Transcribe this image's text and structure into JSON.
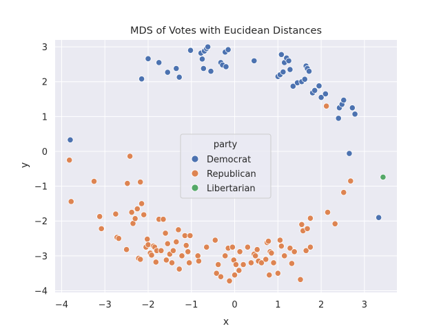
{
  "chart_data": {
    "type": "scatter",
    "title": "MDS of Votes with Eucidean Distances",
    "xlabel": "x",
    "ylabel": "y",
    "xlim": [
      -4.15,
      3.75
    ],
    "ylim": [
      -4.05,
      3.2
    ],
    "xticks": [
      -4,
      -3,
      -2,
      -1,
      0,
      1,
      2,
      3
    ],
    "yticks": [
      -4,
      -3,
      -2,
      -1,
      0,
      1,
      2,
      3
    ],
    "grid": true,
    "legend": {
      "title": "party",
      "placement": "center"
    },
    "series": [
      {
        "name": "Democrat",
        "color": "#4c72b0",
        "points": [
          [
            -3.8,
            0.33
          ],
          [
            -2.15,
            2.08
          ],
          [
            -2.0,
            2.66
          ],
          [
            -1.75,
            2.55
          ],
          [
            -1.55,
            2.27
          ],
          [
            -1.35,
            2.38
          ],
          [
            -1.28,
            2.13
          ],
          [
            -1.02,
            2.9
          ],
          [
            -0.78,
            2.82
          ],
          [
            -0.75,
            2.65
          ],
          [
            -0.72,
            2.38
          ],
          [
            -0.7,
            2.88
          ],
          [
            -0.65,
            2.95
          ],
          [
            -0.62,
            3.0
          ],
          [
            -0.55,
            2.3
          ],
          [
            -0.32,
            2.55
          ],
          [
            -0.28,
            2.48
          ],
          [
            -0.22,
            2.85
          ],
          [
            -0.2,
            2.43
          ],
          [
            -0.15,
            2.92
          ],
          [
            0.45,
            2.6
          ],
          [
            1.0,
            2.15
          ],
          [
            1.05,
            2.2
          ],
          [
            1.08,
            2.78
          ],
          [
            1.12,
            2.28
          ],
          [
            1.15,
            2.55
          ],
          [
            1.2,
            2.68
          ],
          [
            1.25,
            2.6
          ],
          [
            1.28,
            2.35
          ],
          [
            1.35,
            1.87
          ],
          [
            1.45,
            1.97
          ],
          [
            1.55,
            2.0
          ],
          [
            1.62,
            2.07
          ],
          [
            1.65,
            2.45
          ],
          [
            1.68,
            2.38
          ],
          [
            1.72,
            2.3
          ],
          [
            1.8,
            1.68
          ],
          [
            1.85,
            1.75
          ],
          [
            1.95,
            1.88
          ],
          [
            2.0,
            1.55
          ],
          [
            2.1,
            1.65
          ],
          [
            2.4,
            0.95
          ],
          [
            2.42,
            1.25
          ],
          [
            2.48,
            1.35
          ],
          [
            2.52,
            1.47
          ],
          [
            2.65,
            -0.06
          ],
          [
            2.72,
            1.25
          ],
          [
            2.78,
            1.07
          ],
          [
            3.33,
            -1.9
          ]
        ]
      },
      {
        "name": "Republican",
        "color": "#dd8452",
        "points": [
          [
            -3.82,
            -0.25
          ],
          [
            -3.78,
            -1.44
          ],
          [
            -3.25,
            -0.86
          ],
          [
            -3.12,
            -1.87
          ],
          [
            -3.08,
            -2.22
          ],
          [
            -2.75,
            -1.8
          ],
          [
            -2.72,
            -2.47
          ],
          [
            -2.68,
            -2.5
          ],
          [
            -2.5,
            -2.82
          ],
          [
            -2.48,
            -0.92
          ],
          [
            -2.42,
            -0.14
          ],
          [
            -2.38,
            -1.75
          ],
          [
            -2.35,
            -2.07
          ],
          [
            -2.3,
            -1.93
          ],
          [
            -2.25,
            -1.65
          ],
          [
            -2.22,
            -3.07
          ],
          [
            -2.18,
            -3.1
          ],
          [
            -2.18,
            -0.88
          ],
          [
            -2.15,
            -1.5
          ],
          [
            -2.1,
            -1.82
          ],
          [
            -2.05,
            -2.75
          ],
          [
            -2.02,
            -2.52
          ],
          [
            -2.0,
            -2.68
          ],
          [
            -1.95,
            -2.92
          ],
          [
            -1.92,
            -2.98
          ],
          [
            -1.88,
            -2.72
          ],
          [
            -1.85,
            -2.75
          ],
          [
            -1.82,
            -3.18
          ],
          [
            -1.8,
            -2.85
          ],
          [
            -1.75,
            -1.95
          ],
          [
            -1.7,
            -2.85
          ],
          [
            -1.65,
            -1.95
          ],
          [
            -1.6,
            -2.35
          ],
          [
            -1.58,
            -3.12
          ],
          [
            -1.55,
            -2.65
          ],
          [
            -1.5,
            -2.95
          ],
          [
            -1.45,
            -3.2
          ],
          [
            -1.42,
            -2.85
          ],
          [
            -1.35,
            -2.6
          ],
          [
            -1.3,
            -2.25
          ],
          [
            -1.28,
            -3.38
          ],
          [
            -1.22,
            -3.0
          ],
          [
            -1.15,
            -2.42
          ],
          [
            -1.12,
            -2.7
          ],
          [
            -1.08,
            -2.88
          ],
          [
            -1.05,
            -3.2
          ],
          [
            -1.03,
            -2.42
          ],
          [
            -0.85,
            -3.0
          ],
          [
            -0.83,
            -3.15
          ],
          [
            -0.65,
            -2.75
          ],
          [
            -0.45,
            -2.55
          ],
          [
            -0.42,
            -3.5
          ],
          [
            -0.38,
            -3.25
          ],
          [
            -0.32,
            -3.6
          ],
          [
            -0.22,
            -3.0
          ],
          [
            -0.15,
            -2.78
          ],
          [
            -0.12,
            -3.72
          ],
          [
            -0.05,
            -2.75
          ],
          [
            -0.02,
            -3.12
          ],
          [
            0.0,
            -3.55
          ],
          [
            0.03,
            -3.25
          ],
          [
            0.1,
            -3.42
          ],
          [
            0.12,
            -2.88
          ],
          [
            0.2,
            -3.25
          ],
          [
            0.3,
            -2.75
          ],
          [
            0.38,
            -3.2
          ],
          [
            0.45,
            -2.95
          ],
          [
            0.48,
            -3.0
          ],
          [
            0.52,
            -2.82
          ],
          [
            0.55,
            -3.15
          ],
          [
            0.62,
            -3.2
          ],
          [
            0.72,
            -3.1
          ],
          [
            0.75,
            -2.62
          ],
          [
            0.78,
            -2.58
          ],
          [
            0.8,
            -3.55
          ],
          [
            0.82,
            -2.88
          ],
          [
            0.85,
            -2.92
          ],
          [
            0.9,
            -3.2
          ],
          [
            1.0,
            -3.5
          ],
          [
            1.05,
            -2.55
          ],
          [
            1.08,
            -2.72
          ],
          [
            1.15,
            -3.0
          ],
          [
            1.28,
            -2.78
          ],
          [
            1.32,
            -3.22
          ],
          [
            1.38,
            -2.88
          ],
          [
            1.52,
            -3.68
          ],
          [
            1.55,
            -2.1
          ],
          [
            1.58,
            -2.28
          ],
          [
            1.65,
            -2.85
          ],
          [
            1.68,
            -2.22
          ],
          [
            1.75,
            -2.75
          ],
          [
            1.75,
            -1.92
          ],
          [
            2.12,
            1.3
          ],
          [
            2.15,
            -1.75
          ],
          [
            2.32,
            -2.08
          ],
          [
            2.52,
            -1.18
          ],
          [
            2.68,
            -0.85
          ]
        ]
      },
      {
        "name": "Libertarian",
        "color": "#55a868",
        "points": [
          [
            3.43,
            -0.74
          ]
        ]
      }
    ]
  }
}
